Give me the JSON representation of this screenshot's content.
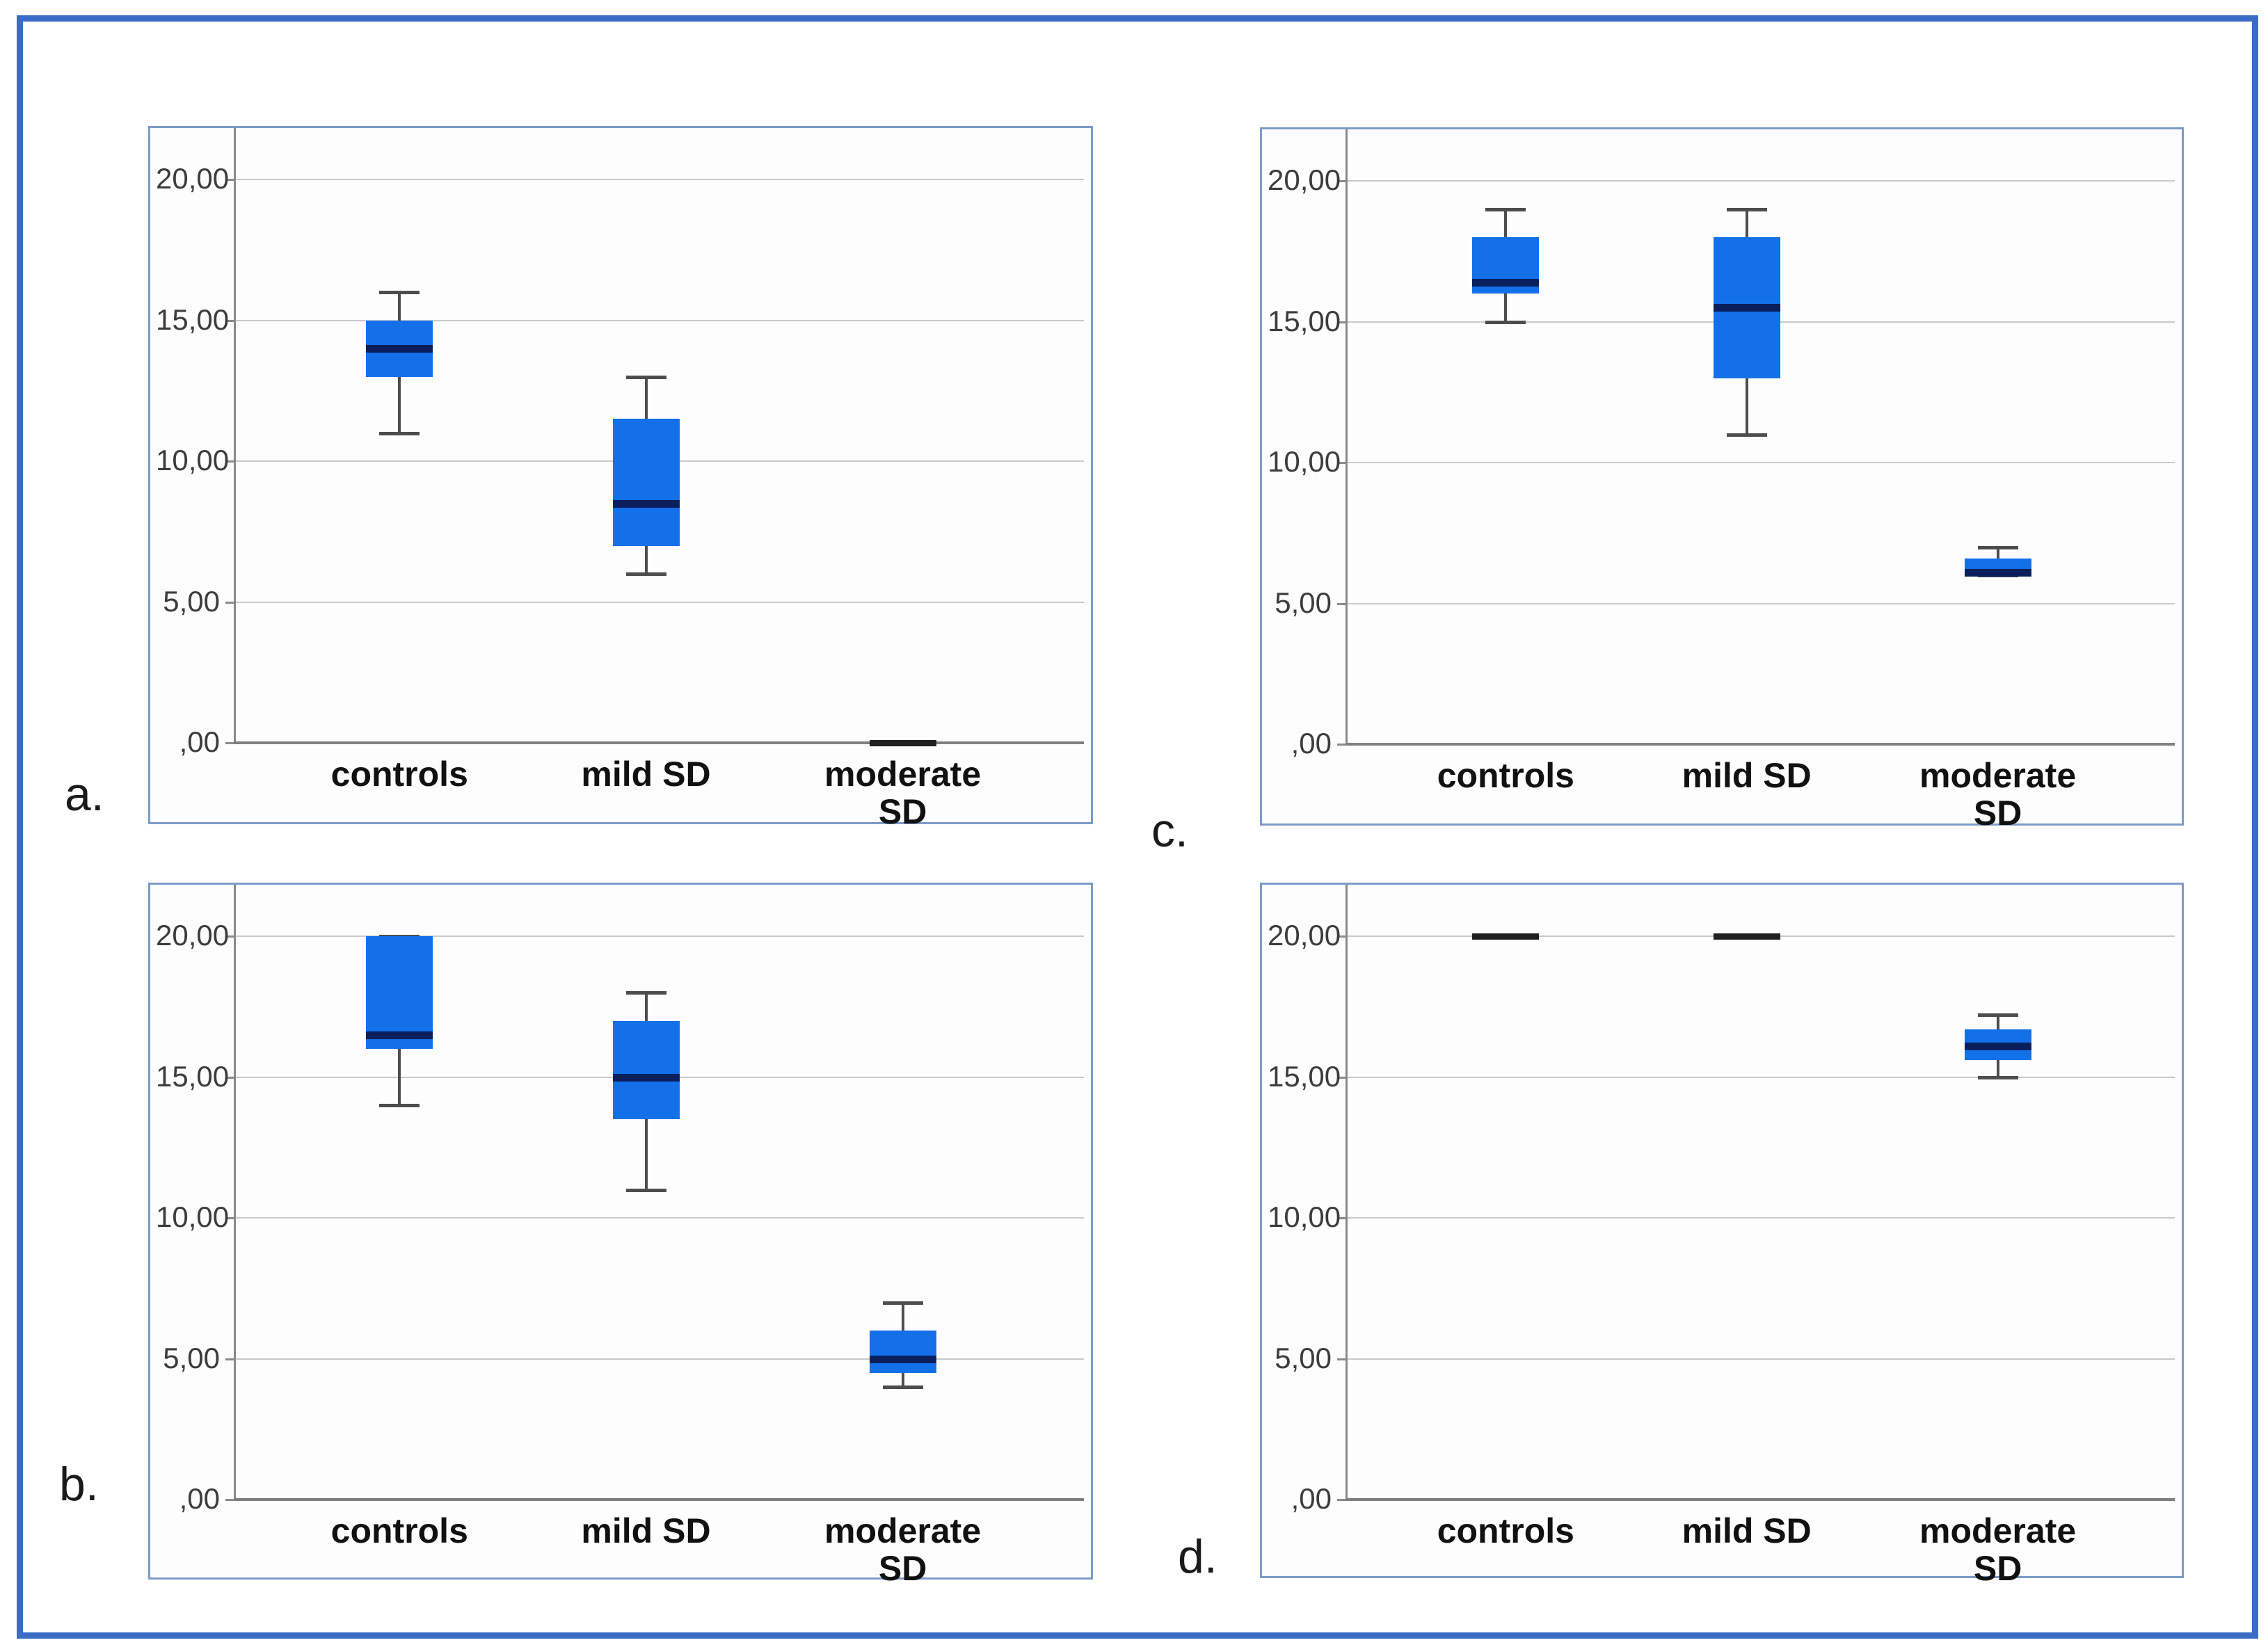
{
  "figure": {
    "outer_border_color": "#3a6cc5",
    "panel_border_color": "#7d9bc8"
  },
  "colors": {
    "box_fill": "#1470e8",
    "median": "#0a1f5c",
    "whisker": "#4d4d4d",
    "gridline": "#c9c9c9",
    "axis": "#8a8a8a",
    "flat_line": "#202020",
    "y_label_text": "#3c3c3c",
    "x_label_text": "#111111"
  },
  "y_axis": {
    "tick_labels": [
      "20,00",
      "15,00",
      "10,00",
      "5,00",
      ",00"
    ],
    "tick_values": [
      20,
      15,
      10,
      5,
      0
    ],
    "min": 0,
    "max": 20,
    "grid": "horizontal gridlines on"
  },
  "x_labels": [
    [
      "controls"
    ],
    [
      "mild SD"
    ],
    [
      "moderate",
      "SD"
    ]
  ],
  "chart_data": [
    {
      "type": "box",
      "letter": "a.",
      "categories": [
        "controls",
        "mild SD",
        "moderate SD"
      ],
      "ylim": [
        0,
        21.8
      ],
      "groups": [
        {
          "category": "controls",
          "style": "box",
          "min": 11,
          "q1": 13,
          "median": 14,
          "q3": 15,
          "max": 16
        },
        {
          "category": "mild SD",
          "style": "box",
          "min": 6,
          "q1": 7,
          "median": 8.5,
          "q3": 11.5,
          "max": 13
        },
        {
          "category": "moderate SD",
          "style": "line",
          "median": 0
        }
      ]
    },
    {
      "type": "box",
      "letter": "b.",
      "categories": [
        "controls",
        "mild SD",
        "moderate SD"
      ],
      "ylim": [
        0,
        21.8
      ],
      "groups": [
        {
          "category": "controls",
          "style": "box",
          "min": 14,
          "q1": 16,
          "median": 16.5,
          "q3": 20,
          "max": 20
        },
        {
          "category": "mild SD",
          "style": "box",
          "min": 11,
          "q1": 13.5,
          "median": 15,
          "q3": 17,
          "max": 18
        },
        {
          "category": "moderate SD",
          "style": "box",
          "min": 4,
          "q1": 4.5,
          "median": 5,
          "q3": 6,
          "max": 7
        }
      ]
    },
    {
      "type": "box",
      "letter": "c.",
      "categories": [
        "controls",
        "mild SD",
        "moderate SD"
      ],
      "ylim": [
        0,
        21.8
      ],
      "groups": [
        {
          "category": "controls",
          "style": "box",
          "min": 15,
          "q1": 16,
          "median": 16.4,
          "q3": 18,
          "max": 19
        },
        {
          "category": "mild SD",
          "style": "box",
          "min": 11,
          "q1": 13,
          "median": 15.5,
          "q3": 18,
          "max": 19
        },
        {
          "category": "moderate SD",
          "style": "box",
          "min": 6,
          "q1": 6.05,
          "median": 6.1,
          "q3": 6.6,
          "max": 7
        }
      ]
    },
    {
      "type": "box",
      "letter": "d.",
      "categories": [
        "controls",
        "mild SD",
        "moderate SD"
      ],
      "ylim": [
        0,
        21.8
      ],
      "groups": [
        {
          "category": "controls",
          "style": "line",
          "median": 20
        },
        {
          "category": "mild SD",
          "style": "line",
          "median": 20
        },
        {
          "category": "moderate SD",
          "style": "box",
          "min": 15,
          "q1": 15.6,
          "median": 16.1,
          "q3": 16.7,
          "max": 17.2
        }
      ]
    }
  ]
}
